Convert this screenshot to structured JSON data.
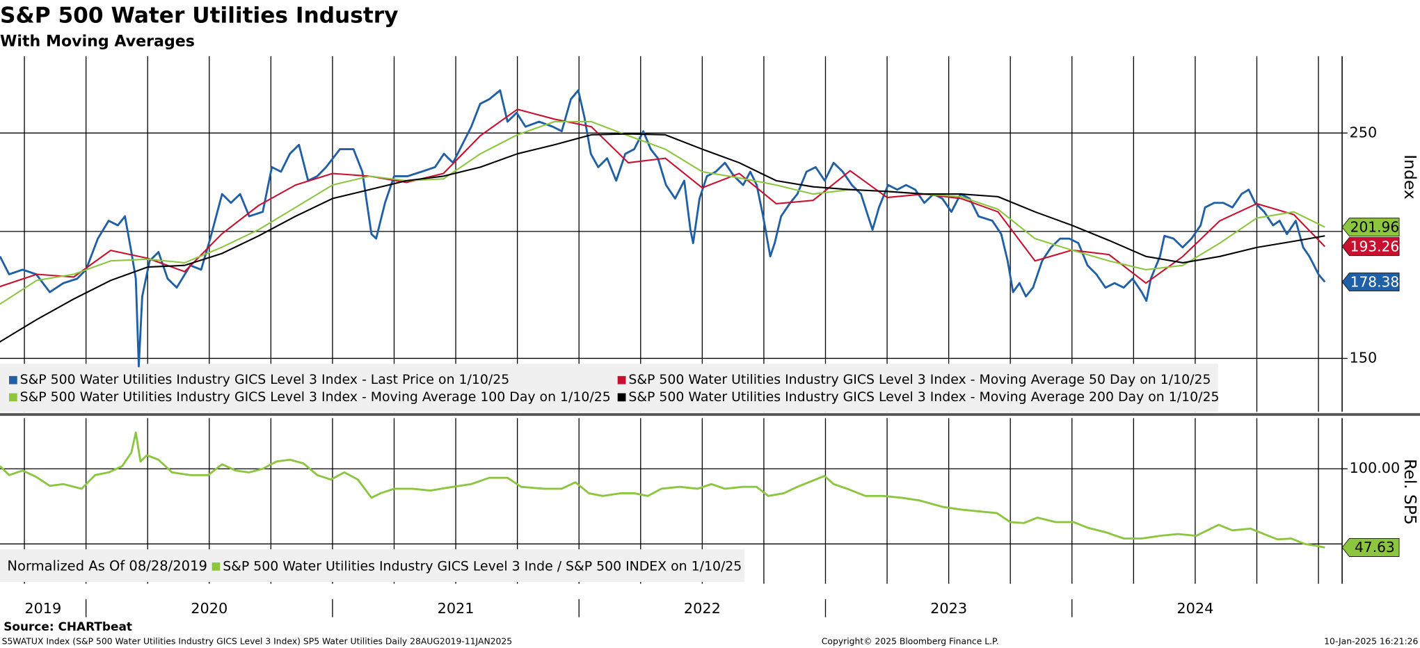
{
  "chart_data": [
    {
      "type": "line",
      "title": "S&P 500 Water Utilities Industry",
      "subtitle": "With Moving Averages",
      "log_scale": true,
      "xlim": [
        2019.651,
        2025.096
      ],
      "ylim": [
        132.9,
        297.6
      ],
      "yticks": [
        150,
        250
      ],
      "yminor": [
        200
      ],
      "grid": true,
      "xgrid": [
        2019.75,
        2020,
        2020.25,
        2020.5,
        2020.75,
        2021,
        2021.25,
        2021.5,
        2021.75,
        2022,
        2022.25,
        2022.5,
        2022.75,
        2023,
        2023.25,
        2023.5,
        2023.75,
        2024,
        2024.25,
        2024.5,
        2024.75,
        2025
      ],
      "axis_label": "Index",
      "legend": "bottom-left",
      "series": [
        {
          "name": "S&P 500 Water Utilities Industry GICS Level 3 Index - Last Price on 1/10/25",
          "color": "#1f5fa5",
          "end_label": true,
          "tag_text_color": "#ffffff",
          "x": [
            2019.651,
            2019.688,
            2019.743,
            2019.798,
            2019.853,
            2019.908,
            2019.964,
            2020,
            2020.048,
            2020.092,
            2020.129,
            2020.158,
            2020.184,
            2020.202,
            2020.214,
            2020.228,
            2020.258,
            2020.294,
            2020.331,
            2020.368,
            2020.423,
            2020.467,
            2020.504,
            2020.552,
            2020.588,
            2020.625,
            2020.662,
            2020.717,
            2020.754,
            2020.791,
            2020.827,
            2020.864,
            2020.901,
            2020.938,
            2020.974,
            2021.03,
            2021.085,
            2021.121,
            2021.158,
            2021.177,
            2021.213,
            2021.25,
            2021.305,
            2021.361,
            2021.416,
            2021.452,
            2021.489,
            2021.526,
            2021.563,
            2021.599,
            2021.636,
            2021.68,
            2021.71,
            2021.747,
            2021.783,
            2021.838,
            2021.894,
            2021.93,
            2021.967,
            2021.997,
            2022.022,
            2022.048,
            2022.078,
            2022.114,
            2022.151,
            2022.188,
            2022.224,
            2022.261,
            2022.291,
            2022.32,
            2022.353,
            2022.39,
            2022.427,
            2022.452,
            2022.463,
            2022.489,
            2022.519,
            2022.555,
            2022.592,
            2022.629,
            2022.666,
            2022.695,
            2022.721,
            2022.747,
            2022.776,
            2022.794,
            2022.82,
            2022.857,
            2022.886,
            2022.923,
            2022.96,
            2022.997,
            2023.033,
            2023.07,
            2023.107,
            2023.144,
            2023.173,
            2023.191,
            2023.217,
            2023.254,
            2023.291,
            2023.327,
            2023.364,
            2023.401,
            2023.438,
            2023.474,
            2023.511,
            2023.548,
            2023.585,
            2023.621,
            2023.677,
            2023.713,
            2023.739,
            2023.761,
            2023.787,
            2023.813,
            2023.842,
            2023.879,
            2023.915,
            2023.952,
            2023.989,
            2024.026,
            2024.063,
            2024.099,
            2024.136,
            2024.173,
            2024.21,
            2024.246,
            2024.283,
            2024.302,
            2024.32,
            2024.357,
            2024.375,
            2024.412,
            2024.449,
            2024.485,
            2024.522,
            2024.54,
            2024.577,
            2024.614,
            2024.651,
            2024.688,
            2024.717,
            2024.743,
            2024.78,
            2024.816,
            2024.842,
            2024.872,
            2024.908,
            2024.938,
            2024.963,
            2024.982,
            2025,
            2025.026
          ],
          "values": [
            189.0,
            181.5,
            183.4,
            181.5,
            174.3,
            177.9,
            179.7,
            183.4,
            196.8,
            204.9,
            202.8,
            207.0,
            190.9,
            179.7,
            147.3,
            172.6,
            187.1,
            190.9,
            179.7,
            176.1,
            185.2,
            183.4,
            196.8,
            217.7,
            213.4,
            217.7,
            207.0,
            209.1,
            231.4,
            229.0,
            238.5,
            243.4,
            224.4,
            226.7,
            231.4,
            241.0,
            241.0,
            229.0,
            198.8,
            196.8,
            213.4,
            226.7,
            226.7,
            229.0,
            231.4,
            238.5,
            233.7,
            243.4,
            253.6,
            267.1,
            269.9,
            275.4,
            256.5,
            261.7,
            253.6,
            256.5,
            253.6,
            251.0,
            269.9,
            275.4,
            259.1,
            238.5,
            231.4,
            236.1,
            224.4,
            238.5,
            241.0,
            251.0,
            241.0,
            236.1,
            222.2,
            215.5,
            224.4,
            200.8,
            194.8,
            215.5,
            226.7,
            229.0,
            233.7,
            226.7,
            222.2,
            229.0,
            222.2,
            207.0,
            189.0,
            194.8,
            207.0,
            213.4,
            217.7,
            229.0,
            231.4,
            224.4,
            233.7,
            229.0,
            222.2,
            217.7,
            207.0,
            200.8,
            211.2,
            222.2,
            219.9,
            222.2,
            219.9,
            213.4,
            217.7,
            215.5,
            209.1,
            217.7,
            215.5,
            207.0,
            204.9,
            198.8,
            187.1,
            174.3,
            177.9,
            172.6,
            176.1,
            187.1,
            192.9,
            196.8,
            196.8,
            194.8,
            185.2,
            181.5,
            176.1,
            177.9,
            176.1,
            179.7,
            174.3,
            170.9,
            179.7,
            189.0,
            198.0,
            196.8,
            192.9,
            196.8,
            202.8,
            211.2,
            213.4,
            213.4,
            211.2,
            217.7,
            219.9,
            213.4,
            209.1,
            202.8,
            204.9,
            198.8,
            204.9,
            192.9,
            189.0,
            185.2,
            181.5,
            178.38
          ]
        },
        {
          "name": "S&P 500 Water Utilities Industry GICS Level 3 Index - Moving Average 50 Day on 1/10/25",
          "color": "#c8102e",
          "end_label": true,
          "tag_text_color": "#ffffff",
          "x": [
            2019.65,
            2019.8,
            2019.95,
            2020.1,
            2020.25,
            2020.4,
            2020.55,
            2020.7,
            2020.85,
            2021,
            2021.15,
            2021.3,
            2021.45,
            2021.6,
            2021.75,
            2021.9,
            2022.05,
            2022.2,
            2022.35,
            2022.5,
            2022.65,
            2022.8,
            2022.95,
            2023.1,
            2023.25,
            2023.4,
            2023.55,
            2023.7,
            2023.85,
            2024,
            2024.15,
            2024.3,
            2024.45,
            2024.6,
            2024.75,
            2024.9,
            2025.026
          ],
          "values": [
            176.5,
            181.5,
            180.4,
            191.6,
            188.2,
            182.6,
            198.8,
            212.1,
            222.2,
            228.1,
            226.7,
            223.5,
            228.1,
            248.5,
            263.8,
            258.0,
            253.6,
            233.7,
            236.1,
            220.8,
            228.1,
            213.0,
            214.6,
            229.5,
            216.0,
            217.7,
            215.5,
            209.1,
            187.1,
            191.7,
            189.8,
            177.9,
            189.0,
            204.9,
            213.0,
            207.8,
            193.26
          ]
        },
        {
          "name": "S&P 500 Water Utilities Industry GICS Level 3 Index - Moving Average 100 Day on 1/10/25",
          "color": "#8cc63f",
          "end_label": true,
          "tag_text_color": "#000000",
          "x": [
            2019.65,
            2019.8,
            2019.95,
            2020.1,
            2020.25,
            2020.4,
            2020.55,
            2020.7,
            2020.85,
            2021,
            2021.15,
            2021.3,
            2021.45,
            2021.6,
            2021.75,
            2021.9,
            2022.05,
            2022.2,
            2022.35,
            2022.5,
            2022.65,
            2022.8,
            2022.95,
            2023.1,
            2023.25,
            2023.4,
            2023.55,
            2023.7,
            2023.85,
            2024,
            2024.15,
            2024.3,
            2024.45,
            2024.6,
            2024.75,
            2024.9,
            2025.026
          ],
          "values": [
            169.6,
            179.0,
            181.5,
            187.1,
            187.8,
            186.3,
            192.9,
            200.8,
            211.2,
            222.2,
            226.7,
            224.4,
            225.3,
            238.5,
            249.0,
            256.5,
            256.5,
            248.5,
            241.0,
            229.0,
            225.8,
            222.2,
            217.7,
            219.9,
            219.0,
            217.7,
            216.4,
            210.3,
            196.8,
            191.7,
            187.1,
            183.4,
            185.2,
            194.8,
            206.2,
            209.1,
            201.96
          ]
        },
        {
          "name": "S&P 500 Water Utilities Industry GICS Level 3 Index - Moving Average 200 Day on 1/10/25",
          "color": "#000000",
          "end_label": false,
          "x": [
            2019.65,
            2019.8,
            2019.95,
            2020.1,
            2020.25,
            2020.4,
            2020.55,
            2020.7,
            2020.85,
            2021,
            2021.15,
            2021.3,
            2021.45,
            2021.6,
            2021.75,
            2021.9,
            2022.05,
            2022.2,
            2022.35,
            2022.5,
            2022.65,
            2022.8,
            2022.95,
            2023.1,
            2023.25,
            2023.4,
            2023.55,
            2023.7,
            2023.85,
            2024,
            2024.15,
            2024.3,
            2024.45,
            2024.6,
            2024.75,
            2024.9,
            2025.026
          ],
          "values": [
            155.7,
            163.8,
            171.6,
            179.0,
            184.5,
            185.2,
            190.2,
            198.0,
            207.0,
            215.5,
            219.9,
            224.4,
            226.7,
            231.4,
            238.5,
            243.4,
            249.0,
            249.5,
            249.0,
            241.0,
            233.7,
            224.4,
            221.3,
            219.9,
            219.0,
            217.7,
            217.7,
            216.4,
            209.1,
            202.8,
            196.0,
            189.0,
            186.3,
            189.0,
            192.9,
            195.6,
            198.0
          ]
        }
      ]
    },
    {
      "type": "line",
      "log_scale": false,
      "xlim": [
        2019.651,
        2025.096
      ],
      "ylim": [
        23.5,
        133.7
      ],
      "yticks": [
        {
          "value": 100,
          "label": "100.00"
        }
      ],
      "yminor": [
        50
      ],
      "grid": true,
      "xgrid": [
        2019.75,
        2020,
        2020.25,
        2020.5,
        2020.75,
        2021,
        2021.25,
        2021.5,
        2021.75,
        2022,
        2022.25,
        2022.5,
        2022.75,
        2023,
        2023.25,
        2023.5,
        2023.75,
        2024,
        2024.25,
        2024.5,
        2024.75,
        2025
      ],
      "xticks": [
        {
          "value": 2019,
          "label": "2019"
        },
        {
          "value": 2020,
          "label": "2020"
        },
        {
          "value": 2021,
          "label": "2021"
        },
        {
          "value": 2022,
          "label": "2022"
        },
        {
          "value": 2023,
          "label": "2023"
        },
        {
          "value": 2024,
          "label": "2024"
        }
      ],
      "axis_label": "Rel. SP5",
      "legend": "bottom-left",
      "legend_note": "Normalized As Of 08/28/2019",
      "series": [
        {
          "name": "S&P 500 Water Utilities Industry GICS Level 3 Inde / S&P 500 INDEX on 1/10/25",
          "color": "#8cc63f",
          "end_label": true,
          "tag_text_color": "#000000",
          "x": [
            2019.651,
            2019.688,
            2019.743,
            2019.798,
            2019.853,
            2019.908,
            2019.982,
            2020.037,
            2020.092,
            2020.147,
            2020.184,
            2020.202,
            2020.221,
            2020.247,
            2020.294,
            2020.349,
            2020.423,
            2020.496,
            2020.552,
            2020.607,
            2020.662,
            2020.717,
            2020.772,
            2020.827,
            2020.882,
            2020.938,
            2020.993,
            2021.048,
            2021.103,
            2021.158,
            2021.195,
            2021.25,
            2021.324,
            2021.397,
            2021.489,
            2021.563,
            2021.636,
            2021.71,
            2021.765,
            2021.857,
            2021.93,
            2021.985,
            2022.04,
            2022.096,
            2022.169,
            2022.224,
            2022.279,
            2022.334,
            2022.408,
            2022.481,
            2022.537,
            2022.592,
            2022.665,
            2022.72,
            2022.768,
            2022.831,
            2022.886,
            2022.941,
            2022.996,
            2023.033,
            2023.088,
            2023.162,
            2023.235,
            2023.309,
            2023.382,
            2023.474,
            2023.548,
            2023.621,
            2023.695,
            2023.75,
            2023.805,
            2023.86,
            2023.934,
            2024.007,
            2024.063,
            2024.136,
            2024.21,
            2024.283,
            2024.357,
            2024.43,
            2024.504,
            2024.595,
            2024.651,
            2024.724,
            2024.779,
            2024.834,
            2024.89,
            2024.944,
            2024.989,
            2025.026
          ],
          "values": [
            101.8,
            95.8,
            98.8,
            94.6,
            88.6,
            89.8,
            86.7,
            95.8,
            97.6,
            101.8,
            110.8,
            124.1,
            104.8,
            109.0,
            106.0,
            97.6,
            95.8,
            95.8,
            103.0,
            98.8,
            97.6,
            100.0,
            104.8,
            106.0,
            103.6,
            95.8,
            92.8,
            97.6,
            92.8,
            80.7,
            83.7,
            86.7,
            86.7,
            85.5,
            88.0,
            89.8,
            94.0,
            94.0,
            88.0,
            86.7,
            86.7,
            91.0,
            83.7,
            81.9,
            83.7,
            83.7,
            81.9,
            86.7,
            88.0,
            86.7,
            89.8,
            86.7,
            88.0,
            88.0,
            81.9,
            83.7,
            88.0,
            91.6,
            95.2,
            89.8,
            86.7,
            81.9,
            81.9,
            80.7,
            78.9,
            74.7,
            72.9,
            71.7,
            70.5,
            64.5,
            63.9,
            67.5,
            64.5,
            64.5,
            60.8,
            57.8,
            53.6,
            53.6,
            55.4,
            56.6,
            55.4,
            62.7,
            59.0,
            60.2,
            56.6,
            53.0,
            53.6,
            50.0,
            48.8,
            47.63
          ]
        }
      ]
    }
  ],
  "footer": {
    "source": "Source: CHARTbeat",
    "description": "S5WATUX Index (S&P 500 Water Utilities Industry GICS Level 3 Index) SP5 Water Utilities  Daily 28AUG2019-11JAN2025",
    "copyright": "Copyright© 2025 Bloomberg Finance L.P.",
    "timestamp": "10-Jan-2025 16:21:26"
  }
}
